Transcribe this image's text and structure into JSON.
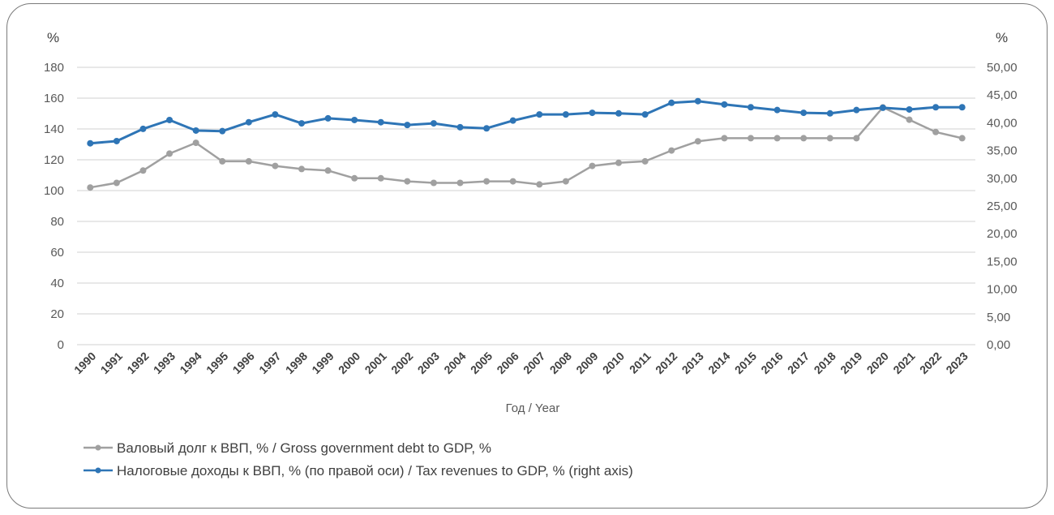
{
  "chart_data": {
    "type": "line",
    "title": "",
    "xlabel": "Год / Year",
    "ylabel_left": "%",
    "ylabel_right": "%",
    "ylim_left": [
      0,
      180
    ],
    "ylim_right": [
      0,
      50
    ],
    "yticks_left": [
      "0",
      "20",
      "40",
      "60",
      "80",
      "100",
      "120",
      "140",
      "160",
      "180"
    ],
    "yticks_right": [
      "0,00",
      "5,00",
      "10,00",
      "15,00",
      "20,00",
      "25,00",
      "30,00",
      "35,00",
      "40,00",
      "45,00",
      "50,00"
    ],
    "grid": true,
    "legend_position": "bottom-left",
    "categories": [
      "1990",
      "1991",
      "1992",
      "1993",
      "1994",
      "1995",
      "1996",
      "1997",
      "1998",
      "1999",
      "2000",
      "2001",
      "2002",
      "2003",
      "2004",
      "2005",
      "2006",
      "2007",
      "2008",
      "2009",
      "2010",
      "2011",
      "2012",
      "2013",
      "2014",
      "2015",
      "2016",
      "2017",
      "2018",
      "2019",
      "2020",
      "2021",
      "2022",
      "2023"
    ],
    "series": [
      {
        "name": "Валовый долг к ВВП, % / Gross government debt to GDP, %",
        "axis": "left",
        "color": "#a0a0a0",
        "values": [
          102,
          105,
          113,
          124,
          131,
          119,
          119,
          116,
          114,
          113,
          108,
          108,
          106,
          105,
          105,
          106,
          106,
          104,
          106,
          116,
          118,
          119,
          126,
          132,
          134,
          134,
          134,
          134,
          134,
          134,
          154,
          146,
          138,
          134
        ]
      },
      {
        "name": "Налоговые доходы к ВВП, % (по правой оси) / Tax revenues to GDP, % (right axis)",
        "axis": "right",
        "color": "#2e75b6",
        "values": [
          36.3,
          36.7,
          38.9,
          40.5,
          38.6,
          38.5,
          40.1,
          41.5,
          39.9,
          40.8,
          40.5,
          40.1,
          39.6,
          39.9,
          39.2,
          39.0,
          40.4,
          41.5,
          41.5,
          41.8,
          41.7,
          41.5,
          43.6,
          43.9,
          43.3,
          42.8,
          42.3,
          41.8,
          41.7,
          42.3,
          42.7,
          42.4,
          42.8,
          42.8
        ]
      }
    ]
  }
}
